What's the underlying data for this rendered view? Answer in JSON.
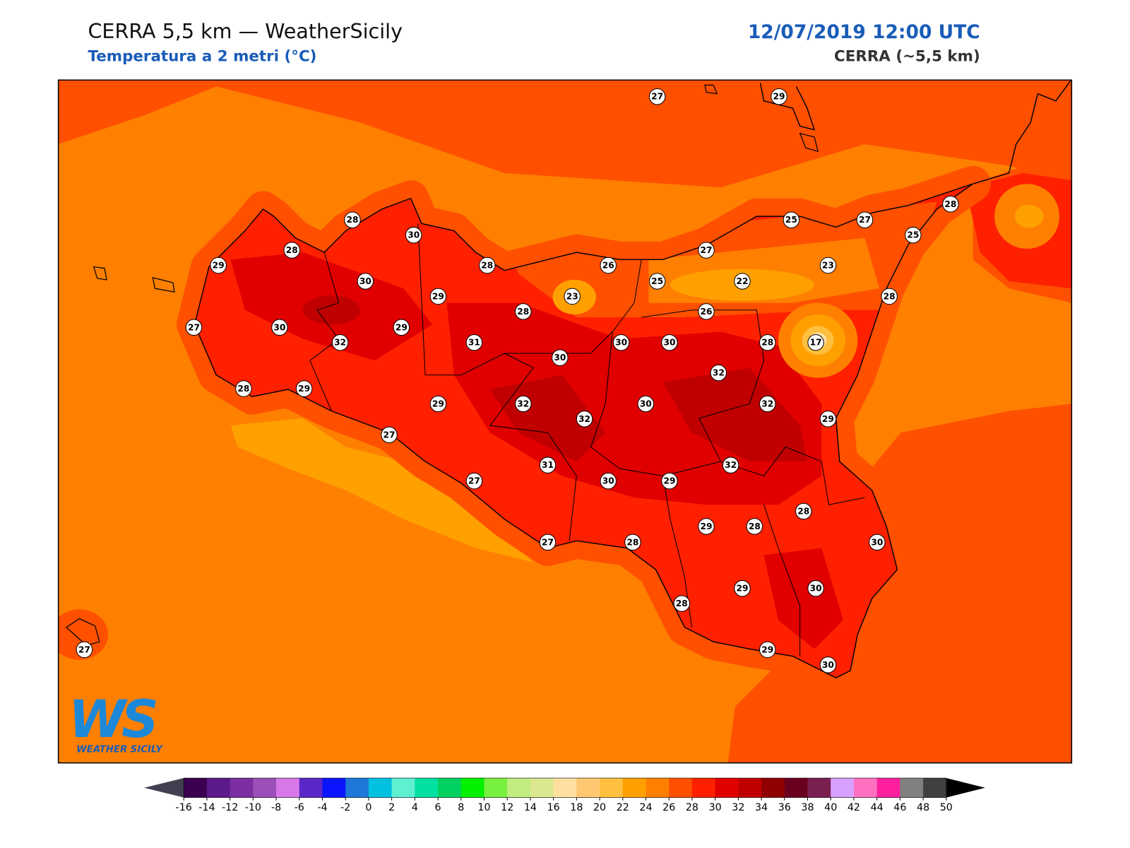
{
  "header": {
    "title": "CERRA 5,5 km — WeatherSicily",
    "subtitle": "Temperatura a 2 metri (°C)",
    "datetime": "12/07/2019 12:00 UTC",
    "model": "CERRA (~5,5 km)"
  },
  "stations": [
    27,
    29,
    28,
    30,
    28,
    25,
    27,
    25,
    28,
    29,
    28,
    26,
    27,
    23,
    30,
    25,
    22,
    29,
    23,
    28,
    28,
    26,
    27,
    30,
    29,
    32,
    31,
    30,
    30,
    28,
    17,
    30,
    32,
    28,
    29,
    29,
    32,
    30,
    32,
    32,
    29,
    27,
    31,
    32,
    27,
    30,
    29,
    28,
    29,
    28,
    27,
    28,
    30,
    29,
    30,
    28,
    27,
    29,
    30
  ],
  "colorbar": {
    "ticks": [
      -16,
      -14,
      -12,
      -10,
      -8,
      -6,
      -4,
      -2,
      0,
      2,
      4,
      6,
      8,
      10,
      12,
      14,
      16,
      18,
      20,
      22,
      24,
      26,
      28,
      30,
      32,
      34,
      36,
      38,
      40,
      42,
      44,
      46,
      48,
      50
    ],
    "colors": [
      "#3b0050",
      "#5c1a8a",
      "#7b2fa0",
      "#9b4fb8",
      "#d878e8",
      "#5a28c8",
      "#0a14ff",
      "#1e78d8",
      "#00c0e0",
      "#5ff0d0",
      "#00e0a0",
      "#00d060",
      "#00f000",
      "#78f040",
      "#c0ec80",
      "#dce890",
      "#ffe0a0",
      "#ffc870",
      "#ffc040",
      "#ffa000",
      "#ff8000",
      "#ff5000",
      "#ff2000",
      "#e00000",
      "#c00000",
      "#900000",
      "#6a0020",
      "#7a2050",
      "#d8a0ff",
      "#ff70c0",
      "#ff20a0",
      "#808080",
      "#404040"
    ],
    "under": "#404050",
    "over": "#000000"
  },
  "logo": {
    "mark": "WS",
    "name": "WEATHER SICILY"
  }
}
